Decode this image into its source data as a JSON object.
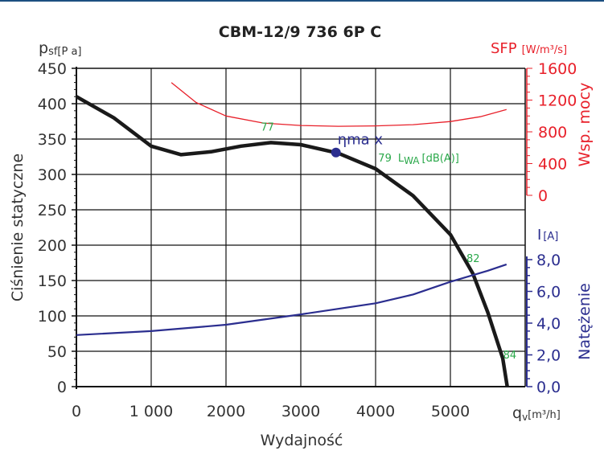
{
  "chart_data": {
    "type": "line",
    "title": "CBM-12/9 736 6P C",
    "xlabel": "Wydajność",
    "xunit_symbol": "q",
    "xunit_sub": "v",
    "xunit": "[m³/h]",
    "xlim": [
      0,
      6000
    ],
    "xticks": [
      0,
      1000,
      2000,
      3000,
      4000,
      5000
    ],
    "xtick_labels": [
      "0",
      "1 000",
      "2000",
      "3000",
      "4000",
      "5000"
    ],
    "grid": true,
    "axes": {
      "pressure": {
        "label": "Ciśnienie statyczne",
        "symbol": "p",
        "sub": "sf",
        "unit": "[P a]",
        "ylim": [
          0,
          450
        ],
        "ticks": [
          "0",
          "50",
          "100",
          "150",
          "200",
          "250",
          "300",
          "350",
          "400",
          "450"
        ],
        "color": "#222222"
      },
      "sfp": {
        "label": "Wsp. mocy",
        "symbol": "SFP",
        "unit": "[W/m³/s]",
        "ylim": [
          0,
          1600
        ],
        "ticks": [
          "0",
          "400",
          "800",
          "1200",
          "1600"
        ],
        "color": "#e8202a"
      },
      "current": {
        "label": "Natężenie",
        "symbol": "I",
        "unit": "[A]",
        "ylim": [
          0,
          8
        ],
        "ticks": [
          "0,0",
          "2,0",
          "4,0",
          "6,0",
          "8,0"
        ],
        "color": "#2b2e8f"
      }
    },
    "series": [
      {
        "axis": "pressure",
        "color": "#1a1a1a",
        "x": [
          0,
          500,
          1000,
          1400,
          1800,
          2200,
          2600,
          3000,
          3500,
          4000,
          4500,
          5000,
          5300,
          5500,
          5700,
          5760
        ],
        "y": [
          410,
          380,
          340,
          328,
          332,
          340,
          345,
          342,
          330,
          308,
          270,
          215,
          160,
          105,
          40,
          0
        ]
      },
      {
        "axis": "sfp",
        "color": "#e8202a",
        "x": [
          1270,
          1600,
          2000,
          2500,
          3000,
          3500,
          4000,
          4500,
          5000,
          5400,
          5750
        ],
        "y": [
          1420,
          1170,
          1000,
          910,
          880,
          870,
          875,
          890,
          930,
          990,
          1080
        ]
      },
      {
        "axis": "current",
        "color": "#2b2e8f",
        "x": [
          0,
          1000,
          2000,
          3000,
          4000,
          4500,
          5000,
          5500,
          5750
        ],
        "y": [
          3.25,
          3.5,
          3.9,
          4.55,
          5.25,
          5.8,
          6.6,
          7.3,
          7.7
        ]
      }
    ],
    "eta_max": {
      "label": "ηma x",
      "x": 3470,
      "y": 331,
      "color": "#2b2e8f"
    },
    "sound_labels": {
      "color": "#2aa84a",
      "items": [
        {
          "text": "77",
          "x": 2530,
          "y": 362
        },
        {
          "text": "79",
          "x": 4100,
          "y": 318,
          "unit": "L",
          "unit_sub": "WA",
          "unit_suffix": "[dB(A)]"
        },
        {
          "text": "82",
          "x": 5280,
          "y": 176
        },
        {
          "text": "84",
          "x": 5770,
          "y": 40
        }
      ]
    }
  }
}
